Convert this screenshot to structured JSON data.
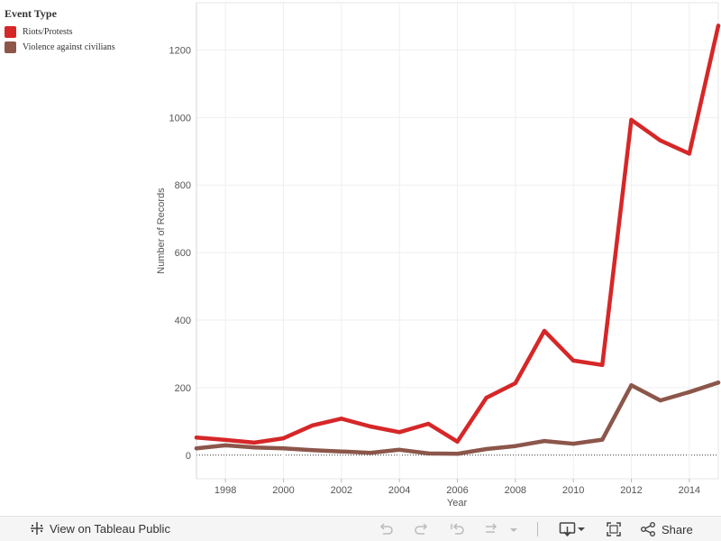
{
  "legend": {
    "title": "Event  Type",
    "items": [
      {
        "label": "Riots/Protests",
        "color": "#d62728"
      },
      {
        "label": "Violence  against  civilians",
        "color": "#8c564b"
      }
    ]
  },
  "chart_data": {
    "type": "line",
    "xlabel": "Year",
    "ylabel": "Number of Records",
    "xlim": [
      1997,
      2015
    ],
    "ylim": [
      -70,
      1340
    ],
    "x_ticks": [
      "1998",
      "2000",
      "2002",
      "2004",
      "2006",
      "2008",
      "2010",
      "2012",
      "2014"
    ],
    "y_ticks": [
      "0",
      "200",
      "400",
      "600",
      "800",
      "1000",
      "1200"
    ],
    "grid": true,
    "legend_position": "top-left",
    "x": [
      1997,
      1998,
      1999,
      2000,
      2001,
      2002,
      2003,
      2004,
      2005,
      2006,
      2007,
      2008,
      2009,
      2010,
      2011,
      2012,
      2013,
      2014,
      2015
    ],
    "series": [
      {
        "name": "Riots/Protests",
        "color": "#d62728",
        "values": [
          52,
          45,
          37,
          50,
          88,
          108,
          85,
          68,
          93,
          40,
          170,
          213,
          368,
          280,
          267,
          993,
          932,
          893,
          1272
        ]
      },
      {
        "name": "Violence against civilians",
        "color": "#8c564b",
        "values": [
          20,
          29,
          23,
          20,
          15,
          11,
          7,
          16,
          5,
          4,
          18,
          27,
          42,
          34,
          46,
          207,
          162,
          187,
          215
        ]
      }
    ]
  },
  "toolbar": {
    "view_label": "View on Tableau Public",
    "share_label": "Share"
  }
}
